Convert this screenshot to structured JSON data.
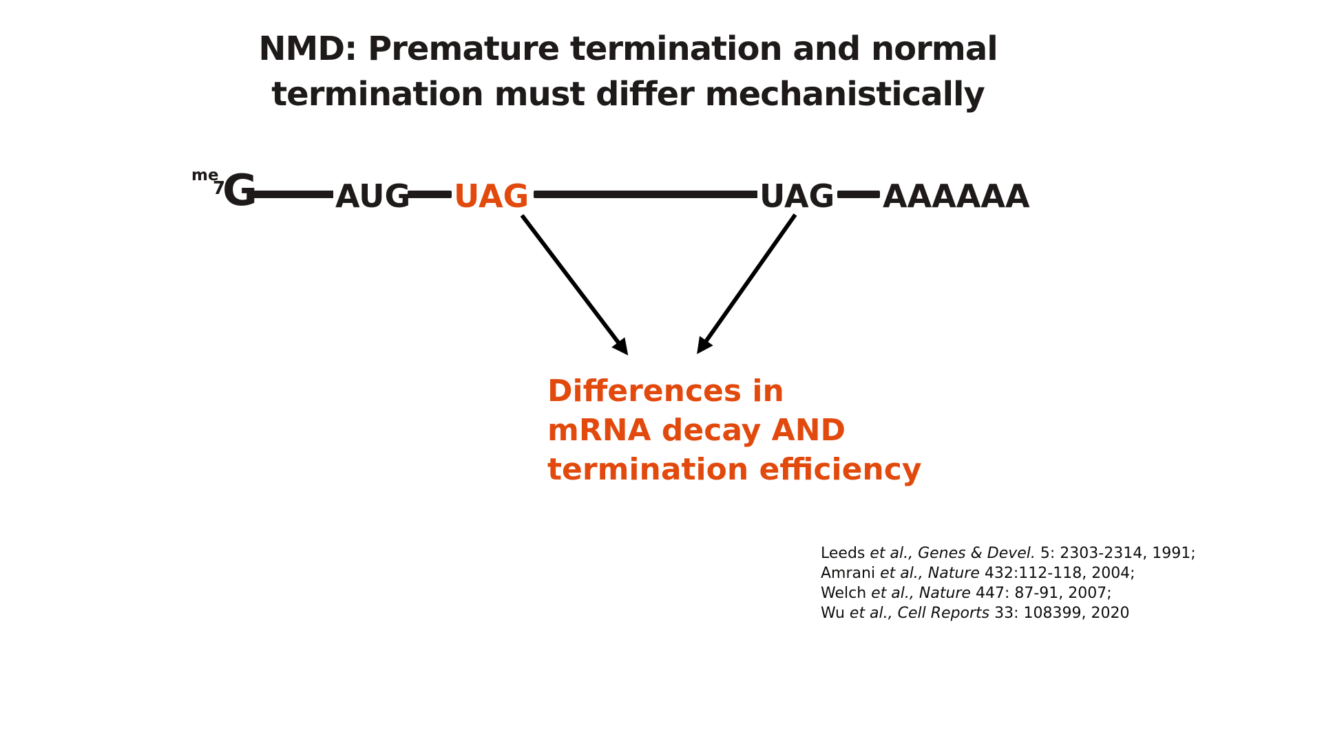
{
  "title": {
    "line1": "NMD: Premature termination and normal",
    "line2": "termination must differ mechanistically"
  },
  "mrna": {
    "cap_sup": "me",
    "cap_sub": "7",
    "cap_base": "G",
    "start_codon": "AUG",
    "ptc_codon": "UAG",
    "normal_stop_codon": "UAG",
    "polya_tail": "AAAAAA"
  },
  "callout": {
    "line1": "Differences in",
    "line2": "mRNA decay AND",
    "line3": "termination efficiency"
  },
  "citations": [
    [
      {
        "text": "Leeds ",
        "italic": false
      },
      {
        "text": "et al., Genes & Devel.",
        "italic": true
      },
      {
        "text": " 5: 2303-2314, 1991;",
        "italic": false
      }
    ],
    [
      {
        "text": "Amrani ",
        "italic": false
      },
      {
        "text": "et al., Nature",
        "italic": true
      },
      {
        "text": " 432:112-118, 2004;",
        "italic": false
      }
    ],
    [
      {
        "text": "Welch ",
        "italic": false
      },
      {
        "text": "et al., Nature",
        "italic": true
      },
      {
        "text": " 447: 87-91, 2007;",
        "italic": false
      }
    ],
    [
      {
        "text": "Wu ",
        "italic": false
      },
      {
        "text": "et al., Cell Reports",
        "italic": true
      },
      {
        "text": " 33: 108399, 2020",
        "italic": false
      }
    ]
  ],
  "colors": {
    "ink": "#1d1a19",
    "accent_orange": "#e2490d",
    "background": "#ffffff",
    "arrow": "#000000"
  }
}
